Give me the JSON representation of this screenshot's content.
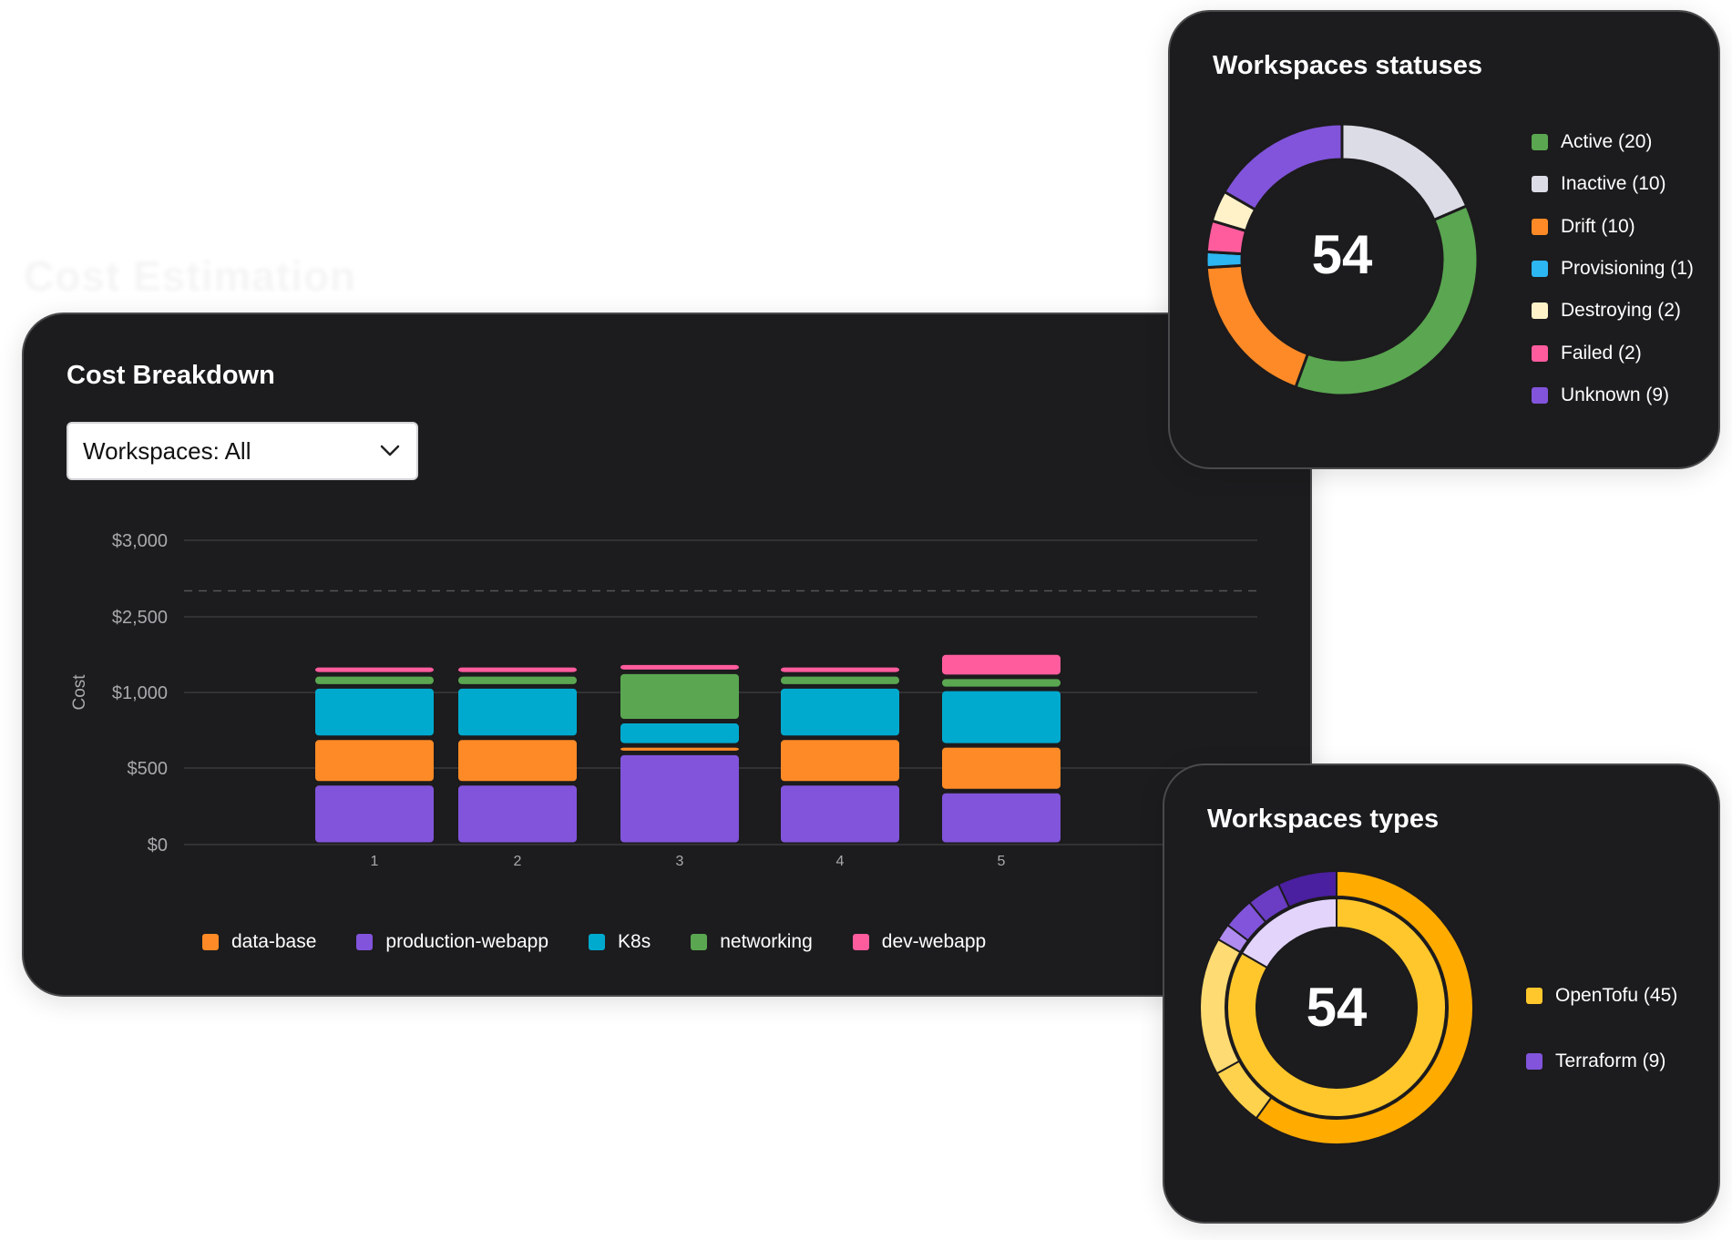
{
  "ghost_title": "Cost Estimation",
  "cost_breakdown": {
    "title": "Cost Breakdown",
    "dropdown": {
      "label": "Workspaces: All",
      "icon": "chevron-down-icon"
    }
  },
  "workspaces_statuses": {
    "title": "Workspaces statuses",
    "total": "54",
    "items": [
      {
        "label": "Active (20)",
        "value": 20,
        "color": "#5aa651"
      },
      {
        "label": "Inactive (10)",
        "value": 10,
        "color": "#dcdce6"
      },
      {
        "label": "Drift (10)",
        "value": 10,
        "color": "#fd8a26"
      },
      {
        "label": "Provisioning (1)",
        "value": 1,
        "color": "#2cb6f2"
      },
      {
        "label": "Destroying (2)",
        "value": 2,
        "color": "#fff2c8"
      },
      {
        "label": "Failed (2)",
        "value": 2,
        "color": "#ff5c9e"
      },
      {
        "label": "Unknown (9)",
        "value": 9,
        "color": "#8154db"
      }
    ]
  },
  "workspaces_types": {
    "title": "Workspaces types",
    "total": "54",
    "items": [
      {
        "label": "OpenTofu (45)",
        "value": 45,
        "color": "#ffc72c"
      },
      {
        "label": "Terraform (9)",
        "value": 9,
        "color": "#8154db"
      }
    ]
  },
  "chart_data": [
    {
      "type": "bar",
      "stacked": true,
      "title": "Cost Breakdown",
      "xlabel": "",
      "ylabel": "Cost",
      "categories": [
        "1",
        "2",
        "3",
        "4",
        "5"
      ],
      "y_ticks": [
        "$0",
        "$500",
        "$1,000",
        "$2,500",
        "$3,000"
      ],
      "y_tick_values": [
        0,
        500,
        1000,
        2500,
        3000
      ],
      "reference_line": 2670,
      "series": [
        {
          "name": "data-base",
          "color": "#fd8a26",
          "values": [
            300,
            300,
            50,
            300,
            300
          ]
        },
        {
          "name": "production-webapp",
          "color": "#8154db",
          "values": [
            400,
            400,
            600,
            400,
            350
          ]
        },
        {
          "name": "K8s",
          "color": "#00aacf",
          "values": [
            420,
            420,
            160,
            420,
            420
          ]
        },
        {
          "name": "networking",
          "color": "#5aa651",
          "values": [
            240,
            240,
            600,
            240,
            240
          ]
        },
        {
          "name": "dev-webapp",
          "color": "#ff5c9e",
          "values": [
            180,
            180,
            180,
            180,
            480
          ]
        }
      ]
    },
    {
      "type": "pie",
      "title": "Workspaces statuses",
      "labels": [
        "Active",
        "Inactive",
        "Drift",
        "Provisioning",
        "Destroying",
        "Failed",
        "Unknown"
      ],
      "values": [
        20,
        10,
        10,
        1,
        2,
        2,
        9
      ],
      "total": 54
    },
    {
      "type": "pie",
      "title": "Workspaces types",
      "labels": [
        "OpenTofu",
        "Terraform"
      ],
      "values": [
        45,
        9
      ],
      "total": 54
    }
  ]
}
